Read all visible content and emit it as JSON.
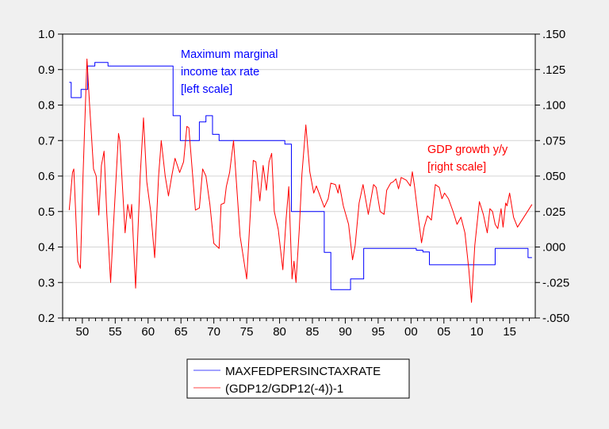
{
  "chart_data": {
    "type": "line",
    "title": "",
    "xlim": [
      1947.0,
      2018.9
    ],
    "x_tick_years": [
      1950,
      1955,
      1960,
      1965,
      1970,
      1975,
      1980,
      1985,
      1990,
      1995,
      2000,
      2005,
      2010,
      2015
    ],
    "x_tick_labels": [
      "50",
      "55",
      "60",
      "65",
      "70",
      "75",
      "80",
      "85",
      "90",
      "95",
      "00",
      "05",
      "10",
      "15"
    ],
    "left_axis": {
      "ylim": [
        0.2,
        1.0
      ],
      "ticks": [
        0.2,
        0.3,
        0.4,
        0.5,
        0.6,
        0.7,
        0.8,
        0.9,
        1.0
      ],
      "tick_labels": [
        "0.2",
        "0.3",
        "0.4",
        "0.5",
        "0.6",
        "0.7",
        "0.8",
        "0.9",
        "1.0"
      ]
    },
    "right_axis": {
      "ylim": [
        -0.05,
        0.15
      ],
      "ticks": [
        -0.05,
        -0.025,
        0,
        0.025,
        0.05,
        0.075,
        0.1,
        0.125,
        0.15
      ],
      "tick_labels": [
        "-.050",
        "-.025",
        ".000",
        ".025",
        ".050",
        ".075",
        ".100",
        ".125",
        ".150"
      ]
    },
    "grid": true,
    "legend_placement": "bottom-center",
    "series": [
      {
        "name": "MAXFEDPERSINCTAXRATE",
        "axis": "left",
        "color": "#0000ff",
        "step": true,
        "x": [
          1948.0,
          1948.3,
          1949.8,
          1950.8,
          1951.9,
          1953.9,
          1963.8,
          1964.9,
          1967.8,
          1968.8,
          1969.8,
          1970.8,
          1980.8,
          1981.8,
          1986.8,
          1987.8,
          1990.8,
          1992.8,
          2000.8,
          2001.8,
          2002.8,
          2012.8,
          2017.8,
          2018.4
        ],
        "y": [
          0.864,
          0.821,
          0.844,
          0.91,
          0.92,
          0.91,
          0.77,
          0.7,
          0.7525,
          0.77,
          0.7175,
          0.7,
          0.69,
          0.5,
          0.385,
          0.28,
          0.31,
          0.396,
          0.391,
          0.386,
          0.35,
          0.396,
          0.37,
          0.37
        ]
      },
      {
        "name": "(GDP12/GDP12(-4))-1",
        "axis": "right",
        "color": "#ff0000",
        "x": [
          1948.0,
          1948.5,
          1948.7,
          1949.3,
          1949.7,
          1950.1,
          1950.7,
          1951.1,
          1951.7,
          1952.1,
          1952.5,
          1952.9,
          1953.3,
          1953.7,
          1954.3,
          1954.7,
          1955.5,
          1955.7,
          1956.5,
          1956.9,
          1957.3,
          1957.5,
          1958.1,
          1958.8,
          1959.3,
          1959.8,
          1960.4,
          1961.0,
          1961.6,
          1962.0,
          1962.6,
          1963.1,
          1963.6,
          1964.1,
          1964.8,
          1965.4,
          1965.9,
          1966.2,
          1967.2,
          1967.8,
          1968.3,
          1968.8,
          1969.4,
          1970.0,
          1970.8,
          1971.1,
          1971.6,
          1971.9,
          1972.4,
          1973.0,
          1974.0,
          1975.0,
          1976.0,
          1976.4,
          1977.0,
          1977.5,
          1978.0,
          1978.4,
          1978.8,
          1979.2,
          1979.8,
          1980.5,
          1981.0,
          1981.4,
          1981.9,
          1982.2,
          1982.5,
          1983.0,
          1983.4,
          1984.0,
          1984.6,
          1985.2,
          1985.6,
          1986.0,
          1986.8,
          1987.4,
          1987.8,
          1988.5,
          1988.9,
          1989.1,
          1989.7,
          1990.5,
          1991.1,
          1991.5,
          1992.1,
          1992.7,
          1993.5,
          1994.3,
          1994.7,
          1995.3,
          1995.9,
          1996.3,
          1996.9,
          1997.3,
          1997.7,
          1998.1,
          1998.5,
          1999.3,
          1999.9,
          2000.2,
          2000.5,
          2001.1,
          2001.6,
          2002.0,
          2002.5,
          2003.1,
          2003.7,
          2004.3,
          2004.7,
          2005.1,
          2005.7,
          2006.4,
          2007.0,
          2007.6,
          2008.2,
          2008.8,
          2009.2,
          2009.7,
          2010.4,
          2011.0,
          2011.6,
          2012.0,
          2012.4,
          2012.8,
          2013.2,
          2013.7,
          2014.0,
          2014.4,
          2014.6,
          2015.0,
          2015.6,
          2016.2,
          2018.4
        ],
        "y": [
          0.026,
          0.0525,
          0.055,
          -0.01,
          -0.015,
          0.05,
          0.1325,
          0.1,
          0.055,
          0.05,
          0.0225,
          0.0575,
          0.0675,
          0.025,
          -0.025,
          0.0125,
          0.08,
          0.075,
          0.01,
          0.03,
          0.02,
          0.03,
          -0.029,
          0.05,
          0.091,
          0.046,
          0.025,
          -0.0075,
          0.05,
          0.075,
          0.05,
          0.036,
          0.05,
          0.0625,
          0.0525,
          0.06,
          0.085,
          0.084,
          0.026,
          0.0275,
          0.055,
          0.05,
          0.03,
          0.0025,
          -0.001,
          0.03,
          0.031,
          0.0425,
          0.0525,
          0.075,
          0.0075,
          -0.0225,
          0.061,
          0.06,
          0.0325,
          0.0575,
          0.04,
          0.06,
          0.066,
          0.025,
          0.0125,
          -0.016,
          0.02,
          0.0425,
          -0.0225,
          -0.01,
          -0.025,
          0.0125,
          0.051,
          0.086,
          0.053,
          0.038,
          0.043,
          0.038,
          0.028,
          0.034,
          0.045,
          0.044,
          0.038,
          0.044,
          0.029,
          0.016,
          -0.009,
          0.001,
          0.031,
          0.044,
          0.023,
          0.044,
          0.042,
          0.025,
          0.023,
          0.04,
          0.045,
          0.046,
          0.048,
          0.041,
          0.049,
          0.047,
          0.043,
          0.053,
          0.044,
          0.021,
          0.003,
          0.014,
          0.022,
          0.019,
          0.044,
          0.042,
          0.034,
          0.038,
          0.034,
          0.025,
          0.016,
          0.021,
          0.01,
          -0.016,
          -0.039,
          0.001,
          0.032,
          0.023,
          0.01,
          0.027,
          0.025,
          0.016,
          0.013,
          0.027,
          0.014,
          0.031,
          0.029,
          0.038,
          0.021,
          0.014,
          0.03
        ]
      }
    ],
    "annotations": [
      {
        "lines": [
          "Maximum marginal",
          "income tax rate",
          "[left scale]"
        ],
        "color": "#0000ff"
      },
      {
        "lines": [
          "GDP growth y/y",
          "[right scale]"
        ],
        "color": "#ff0000"
      }
    ]
  }
}
